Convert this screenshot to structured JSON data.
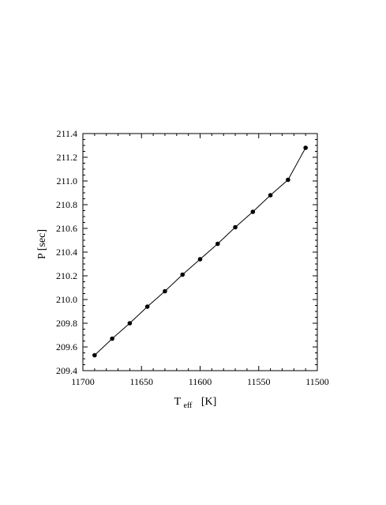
{
  "chart_data": {
    "type": "line",
    "title": "",
    "xlabel": {
      "main": "T",
      "sub": "eff",
      "unit": "[K]"
    },
    "ylabel": "P  [sec]",
    "xlim": [
      11700,
      11500
    ],
    "ylim": [
      209.4,
      211.4
    ],
    "x_reversed": true,
    "grid": false,
    "legend": "none",
    "x_ticks": [
      11700,
      11650,
      11600,
      11550,
      11500
    ],
    "x_tick_labels": [
      "11700",
      "11650",
      "11600",
      "11550",
      "11500"
    ],
    "y_ticks": [
      209.4,
      209.6,
      209.8,
      210.0,
      210.2,
      210.4,
      210.6,
      210.8,
      211.0,
      211.2,
      211.4
    ],
    "y_tick_labels": [
      "209.4",
      "209.6",
      "209.8",
      "210.0",
      "210.2",
      "210.4",
      "210.6",
      "210.8",
      "211.0",
      "211.2",
      "211.4"
    ],
    "series": [
      {
        "marker": "filled-circle",
        "color": "#000000",
        "x": [
          11690,
          11675,
          11660,
          11645,
          11630,
          11615,
          11600,
          11585,
          11570,
          11555,
          11540,
          11525,
          11510
        ],
        "y": [
          209.53,
          209.67,
          209.8,
          209.94,
          210.07,
          210.21,
          210.34,
          210.47,
          210.61,
          210.74,
          210.88,
          211.01,
          211.28
        ]
      }
    ]
  }
}
